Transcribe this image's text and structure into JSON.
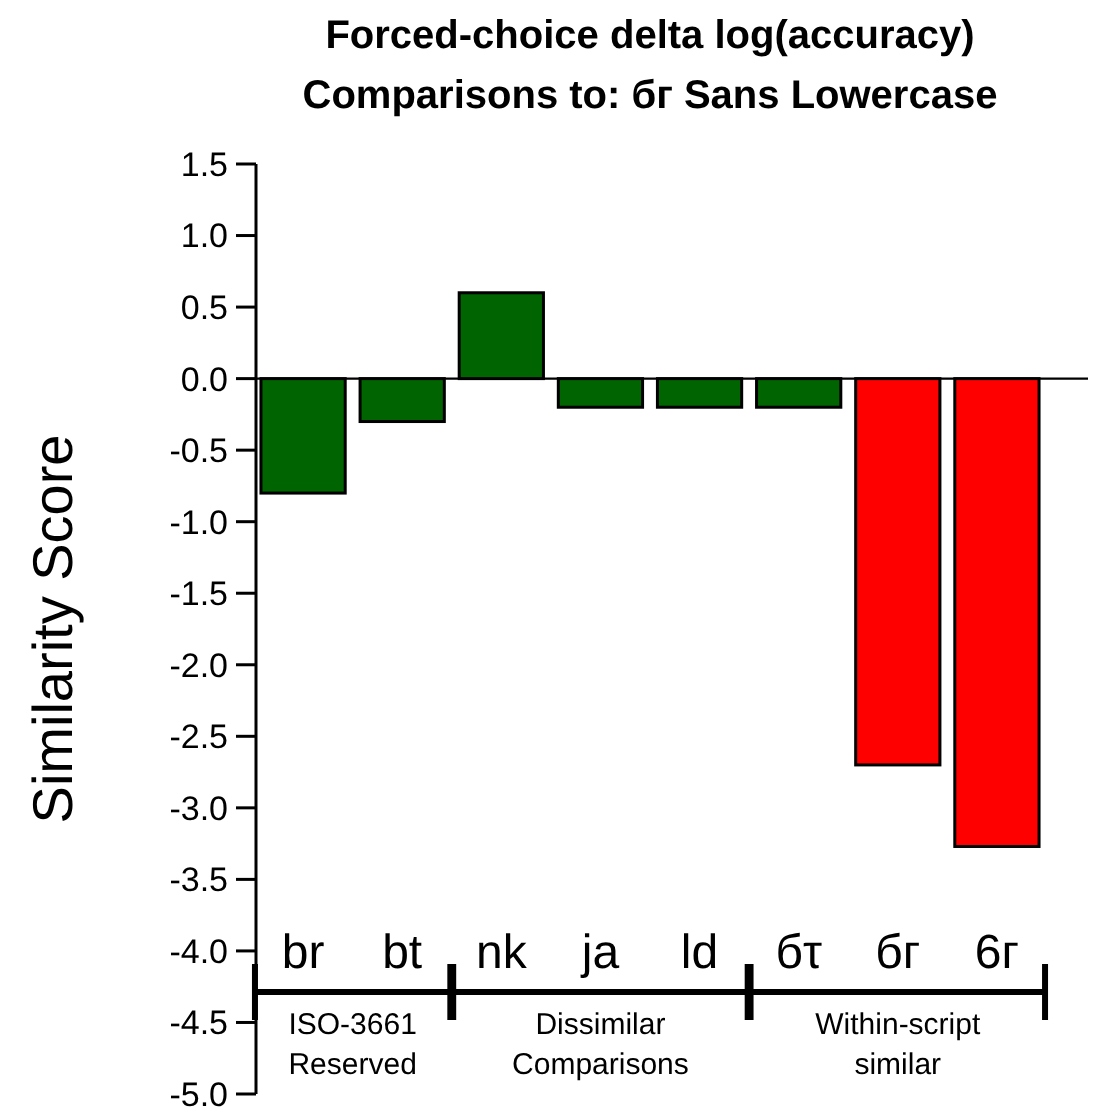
{
  "chart_data": {
    "type": "bar",
    "title": "Forced-choice delta log(accuracy)",
    "subtitle": "Comparisons to: бг Sans Lowercase",
    "ylabel": "Similarity Score",
    "categories": [
      "br",
      "bt",
      "nk",
      "ja",
      "ld",
      "бτ",
      "бг",
      "6г"
    ],
    "values": [
      -0.8,
      -0.3,
      0.6,
      -0.2,
      -0.2,
      -0.2,
      -2.7,
      -3.27
    ],
    "colors": [
      "#006400",
      "#006400",
      "#006400",
      "#006400",
      "#006400",
      "#006400",
      "#ff0000",
      "#ff0000"
    ],
    "ylim": [
      -5,
      1.5
    ],
    "yticks": [
      {
        "value": -5,
        "label": "-5.0"
      },
      {
        "value": -4.5,
        "label": "-4.5"
      },
      {
        "value": -4,
        "label": "-4.0"
      },
      {
        "value": -3.5,
        "label": "-3.5"
      },
      {
        "value": -3,
        "label": "-3.0"
      },
      {
        "value": -2.5,
        "label": "-2.5"
      },
      {
        "value": -2,
        "label": "-2.0"
      },
      {
        "value": -1.5,
        "label": "-1.5"
      },
      {
        "value": -1,
        "label": "-1.0"
      },
      {
        "value": -0.5,
        "label": "-0.5"
      },
      {
        "value": 0,
        "label": "0.0"
      },
      {
        "value": 0.5,
        "label": "0.5"
      },
      {
        "value": 1,
        "label": "1.0"
      },
      {
        "value": 1.5,
        "label": "1.5"
      }
    ],
    "ref_lines": [
      {
        "axis": "y",
        "value": 0,
        "color": "#000000"
      }
    ],
    "annotations": [
      "ISO-3661 Reserved",
      "Dissimilar Comparisons",
      "Within-script similar"
    ],
    "grid": false
  }
}
